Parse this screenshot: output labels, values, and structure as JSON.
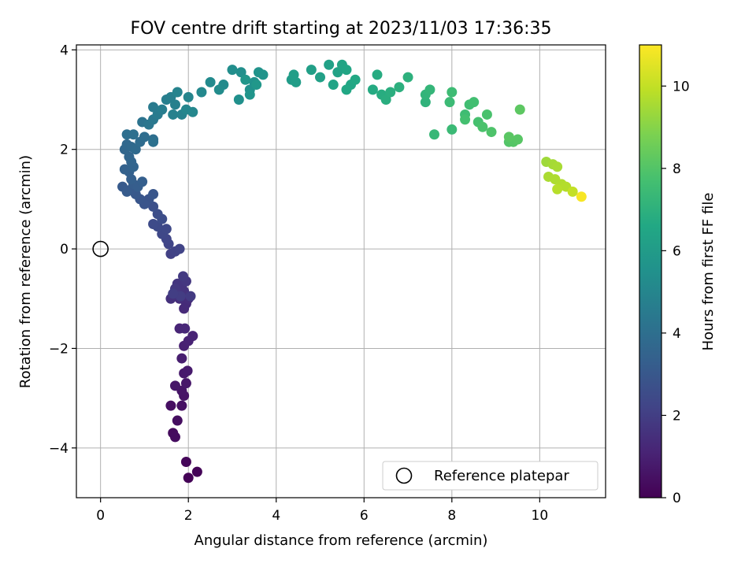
{
  "chart_data": {
    "type": "scatter",
    "title": "FOV centre drift starting at 2023/11/03 17:36:35",
    "xlabel": "Angular distance from reference (arcmin)",
    "ylabel": "Rotation from reference (arcmin)",
    "xlim": [
      -0.55,
      11.5
    ],
    "ylim": [
      -5.0,
      4.1
    ],
    "xticks": [
      0,
      2,
      4,
      6,
      8,
      10
    ],
    "yticks": [
      -4,
      -2,
      0,
      2,
      4
    ],
    "xtick_labels": [
      "0",
      "2",
      "4",
      "6",
      "8",
      "10"
    ],
    "ytick_labels": [
      "−4",
      "−2",
      "0",
      "2",
      "4"
    ],
    "grid": true,
    "colormap": "viridis",
    "colorbar": {
      "label": "Hours from first FF file",
      "range": [
        0,
        11
      ],
      "ticks": [
        0,
        2,
        4,
        6,
        8,
        10
      ],
      "tick_labels": [
        "0",
        "2",
        "4",
        "6",
        "8",
        "10"
      ]
    },
    "reference_point": {
      "x": 0,
      "y": 0
    },
    "legend": {
      "label": "Reference platepar",
      "location": "lower-right"
    },
    "points": [
      [
        2.0,
        -4.6,
        0.05
      ],
      [
        2.2,
        -4.48,
        0.1
      ],
      [
        1.95,
        -4.28,
        0.15
      ],
      [
        1.65,
        -3.7,
        0.3
      ],
      [
        1.7,
        -3.78,
        0.35
      ],
      [
        1.75,
        -3.45,
        0.4
      ],
      [
        1.6,
        -3.15,
        0.45
      ],
      [
        1.85,
        -3.15,
        0.5
      ],
      [
        1.9,
        -2.95,
        0.55
      ],
      [
        1.85,
        -2.85,
        0.6
      ],
      [
        1.7,
        -2.75,
        0.65
      ],
      [
        1.95,
        -2.7,
        0.7
      ],
      [
        1.9,
        -2.5,
        0.75
      ],
      [
        1.98,
        -2.45,
        0.8
      ],
      [
        1.85,
        -2.2,
        0.9
      ],
      [
        1.9,
        -1.95,
        1.0
      ],
      [
        2.0,
        -1.85,
        1.05
      ],
      [
        2.1,
        -1.75,
        1.1
      ],
      [
        1.8,
        -1.6,
        1.15
      ],
      [
        1.92,
        -1.6,
        1.2
      ],
      [
        1.9,
        -1.2,
        1.3
      ],
      [
        1.95,
        -1.1,
        1.35
      ],
      [
        2.0,
        -1.0,
        1.4
      ],
      [
        1.8,
        -1.0,
        1.45
      ],
      [
        1.7,
        -0.9,
        1.5
      ],
      [
        1.6,
        -1.0,
        1.55
      ],
      [
        1.9,
        -0.85,
        1.6
      ],
      [
        1.85,
        -0.75,
        1.65
      ],
      [
        1.75,
        -0.7,
        1.7
      ],
      [
        1.95,
        -0.65,
        1.75
      ],
      [
        1.7,
        -0.8,
        1.8
      ],
      [
        1.88,
        -0.55,
        1.85
      ],
      [
        2.05,
        -0.95,
        1.9
      ],
      [
        1.82,
        -0.95,
        1.95
      ],
      [
        1.65,
        -0.9,
        2.0
      ],
      [
        1.6,
        -0.1,
        2.1
      ],
      [
        1.7,
        -0.05,
        2.15
      ],
      [
        1.8,
        0.0,
        2.2
      ],
      [
        1.55,
        0.1,
        2.25
      ],
      [
        1.5,
        0.2,
        2.3
      ],
      [
        1.4,
        0.3,
        2.35
      ],
      [
        1.5,
        0.4,
        2.4
      ],
      [
        1.3,
        0.45,
        2.45
      ],
      [
        1.2,
        0.5,
        2.5
      ],
      [
        1.4,
        0.6,
        2.55
      ],
      [
        1.3,
        0.7,
        2.6
      ],
      [
        1.2,
        0.85,
        2.7
      ],
      [
        1.1,
        1.0,
        2.8
      ],
      [
        1.0,
        0.9,
        2.85
      ],
      [
        0.9,
        1.0,
        2.9
      ],
      [
        1.2,
        1.1,
        2.95
      ],
      [
        0.8,
        1.1,
        3.0
      ],
      [
        0.7,
        1.2,
        3.05
      ],
      [
        0.5,
        1.25,
        3.1
      ],
      [
        0.6,
        1.15,
        3.15
      ],
      [
        0.75,
        1.3,
        3.2
      ],
      [
        0.85,
        1.25,
        3.25
      ],
      [
        0.95,
        1.35,
        3.3
      ],
      [
        0.7,
        1.4,
        3.35
      ],
      [
        0.65,
        1.55,
        3.4
      ],
      [
        0.55,
        1.6,
        3.45
      ],
      [
        0.75,
        1.65,
        3.5
      ],
      [
        0.7,
        1.75,
        3.55
      ],
      [
        0.65,
        1.85,
        3.6
      ],
      [
        0.55,
        2.0,
        3.65
      ],
      [
        0.6,
        2.1,
        3.7
      ],
      [
        0.7,
        2.05,
        3.75
      ],
      [
        0.8,
        2.0,
        3.8
      ],
      [
        0.9,
        2.15,
        3.85
      ],
      [
        1.0,
        2.25,
        3.9
      ],
      [
        1.2,
        2.2,
        3.95
      ],
      [
        0.6,
        2.3,
        4.0
      ],
      [
        0.75,
        2.3,
        4.05
      ],
      [
        1.2,
        2.15,
        4.1
      ],
      [
        0.95,
        2.55,
        4.2
      ],
      [
        1.1,
        2.5,
        4.3
      ],
      [
        1.2,
        2.6,
        4.4
      ],
      [
        1.2,
        2.85,
        4.5
      ],
      [
        1.3,
        2.7,
        4.55
      ],
      [
        1.4,
        2.8,
        4.6
      ],
      [
        1.5,
        3.0,
        4.65
      ],
      [
        1.6,
        3.05,
        4.7
      ],
      [
        1.7,
        2.9,
        4.75
      ],
      [
        1.65,
        2.7,
        4.8
      ],
      [
        1.85,
        2.7,
        4.85
      ],
      [
        1.75,
        3.15,
        4.9
      ],
      [
        2.0,
        3.05,
        4.95
      ],
      [
        1.95,
        2.8,
        5.0
      ],
      [
        2.1,
        2.75,
        5.05
      ],
      [
        2.3,
        3.15,
        5.1
      ],
      [
        2.5,
        3.35,
        5.2
      ],
      [
        2.8,
        3.3,
        5.25
      ],
      [
        2.7,
        3.2,
        5.3
      ],
      [
        3.0,
        3.6,
        5.35
      ],
      [
        3.2,
        3.55,
        5.4
      ],
      [
        3.15,
        3.0,
        5.45
      ],
      [
        3.4,
        3.2,
        5.5
      ],
      [
        3.5,
        3.35,
        5.55
      ],
      [
        3.6,
        3.55,
        5.6
      ],
      [
        3.7,
        3.5,
        5.65
      ],
      [
        3.4,
        3.1,
        5.7
      ],
      [
        3.3,
        3.4,
        5.75
      ],
      [
        3.55,
        3.3,
        5.8
      ],
      [
        4.35,
        3.4,
        6.0
      ],
      [
        4.45,
        3.35,
        6.05
      ],
      [
        4.4,
        3.5,
        6.1
      ],
      [
        4.8,
        3.6,
        6.15
      ],
      [
        5.0,
        3.45,
        6.2
      ],
      [
        5.2,
        3.7,
        6.25
      ],
      [
        5.4,
        3.55,
        6.3
      ],
      [
        5.3,
        3.3,
        6.35
      ],
      [
        5.5,
        3.7,
        6.4
      ],
      [
        5.6,
        3.6,
        6.45
      ],
      [
        5.7,
        3.3,
        6.5
      ],
      [
        5.6,
        3.2,
        6.55
      ],
      [
        5.8,
        3.4,
        6.6
      ],
      [
        6.2,
        3.2,
        6.7
      ],
      [
        6.3,
        3.5,
        6.75
      ],
      [
        6.4,
        3.1,
        6.8
      ],
      [
        6.5,
        3.0,
        6.85
      ],
      [
        6.6,
        3.15,
        6.9
      ],
      [
        6.8,
        3.25,
        6.95
      ],
      [
        7.0,
        3.45,
        7.0
      ],
      [
        7.4,
        2.95,
        7.1
      ],
      [
        7.4,
        3.1,
        7.15
      ],
      [
        7.5,
        3.2,
        7.2
      ],
      [
        7.6,
        2.3,
        7.3
      ],
      [
        8.0,
        2.4,
        7.4
      ],
      [
        7.95,
        2.95,
        7.45
      ],
      [
        8.0,
        3.15,
        7.5
      ],
      [
        8.3,
        2.7,
        7.55
      ],
      [
        8.4,
        2.9,
        7.6
      ],
      [
        8.5,
        2.95,
        7.65
      ],
      [
        8.3,
        2.6,
        7.7
      ],
      [
        8.6,
        2.55,
        7.75
      ],
      [
        8.8,
        2.7,
        7.8
      ],
      [
        8.7,
        2.45,
        7.85
      ],
      [
        8.9,
        2.35,
        7.9
      ],
      [
        9.3,
        2.15,
        8.0
      ],
      [
        9.4,
        2.15,
        8.05
      ],
      [
        9.5,
        2.2,
        8.1
      ],
      [
        9.3,
        2.25,
        8.15
      ],
      [
        9.55,
        2.8,
        8.2
      ],
      [
        10.15,
        1.75,
        9.4
      ],
      [
        10.3,
        1.7,
        9.5
      ],
      [
        10.4,
        1.65,
        9.55
      ],
      [
        10.2,
        1.45,
        9.6
      ],
      [
        10.35,
        1.4,
        9.65
      ],
      [
        10.5,
        1.3,
        9.7
      ],
      [
        10.6,
        1.25,
        9.75
      ],
      [
        10.4,
        1.2,
        9.8
      ],
      [
        10.75,
        1.15,
        10.0
      ],
      [
        10.95,
        1.05,
        10.9
      ]
    ]
  }
}
